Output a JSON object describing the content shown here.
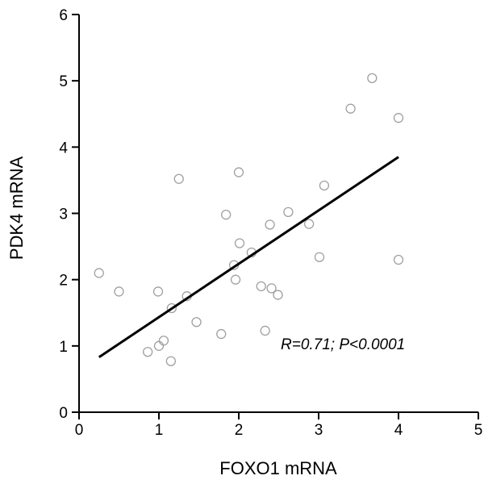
{
  "chart_data": {
    "type": "scatter",
    "xlabel": "FOXO1 mRNA",
    "ylabel": "PDK4 mRNA",
    "xlim": [
      0,
      5
    ],
    "ylim": [
      0,
      6
    ],
    "x_ticks": [
      0,
      1,
      2,
      3,
      4,
      5
    ],
    "y_ticks": [
      0,
      1,
      2,
      3,
      4,
      5,
      6
    ],
    "grid": false,
    "annotation": "R=0.71; P<0.0001",
    "series": [
      {
        "points": [
          {
            "x": 0.25,
            "y": 2.1
          },
          {
            "x": 0.5,
            "y": 1.82
          },
          {
            "x": 0.86,
            "y": 0.91
          },
          {
            "x": 0.99,
            "y": 1.82
          },
          {
            "x": 1.0,
            "y": 1.0
          },
          {
            "x": 1.06,
            "y": 1.08
          },
          {
            "x": 1.15,
            "y": 0.77
          },
          {
            "x": 1.16,
            "y": 1.57
          },
          {
            "x": 1.25,
            "y": 3.52
          },
          {
            "x": 1.35,
            "y": 1.75
          },
          {
            "x": 1.47,
            "y": 1.36
          },
          {
            "x": 1.78,
            "y": 1.18
          },
          {
            "x": 1.84,
            "y": 2.98
          },
          {
            "x": 1.94,
            "y": 2.22
          },
          {
            "x": 1.96,
            "y": 2.0
          },
          {
            "x": 2.0,
            "y": 3.62
          },
          {
            "x": 2.01,
            "y": 2.55
          },
          {
            "x": 2.16,
            "y": 2.41
          },
          {
            "x": 2.28,
            "y": 1.9
          },
          {
            "x": 2.33,
            "y": 1.23
          },
          {
            "x": 2.39,
            "y": 2.83
          },
          {
            "x": 2.41,
            "y": 1.87
          },
          {
            "x": 2.49,
            "y": 1.77
          },
          {
            "x": 2.62,
            "y": 3.02
          },
          {
            "x": 2.88,
            "y": 2.84
          },
          {
            "x": 3.01,
            "y": 2.34
          },
          {
            "x": 3.07,
            "y": 3.42
          },
          {
            "x": 3.4,
            "y": 4.58
          },
          {
            "x": 3.67,
            "y": 5.04
          },
          {
            "x": 4.0,
            "y": 4.44
          },
          {
            "x": 4.0,
            "y": 2.3
          }
        ]
      }
    ],
    "regression_line": {
      "x": [
        0.25,
        4.0
      ],
      "y": [
        0.83,
        3.85
      ]
    },
    "marker_color": "#a0a0a0",
    "line_color": "#000000"
  }
}
